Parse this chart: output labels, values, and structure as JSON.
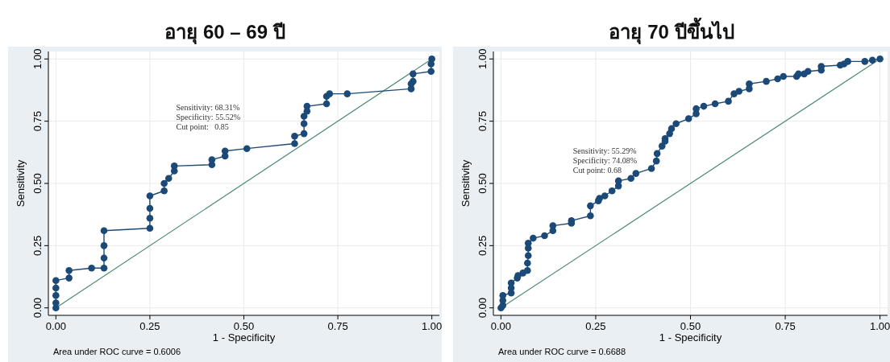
{
  "chart_data": [
    {
      "type": "line",
      "title": "อายุ 60 – 69 ปี",
      "xlabel": "1 - Specificity",
      "ylabel": "Sensitivity",
      "xlim": [
        -0.02,
        1.02
      ],
      "ylim": [
        -0.03,
        1.03
      ],
      "xticks": [
        {
          "value": 0,
          "label": "0.00"
        },
        {
          "value": 0.25,
          "label": "0.25"
        },
        {
          "value": 0.5,
          "label": "0.50"
        },
        {
          "value": 0.75,
          "label": "0.75"
        },
        {
          "value": 1,
          "label": "1.00"
        }
      ],
      "yticks": [
        {
          "value": 0,
          "label": "0.00"
        },
        {
          "value": 0.25,
          "label": "0.25"
        },
        {
          "value": 0.5,
          "label": "0.50"
        },
        {
          "value": 0.75,
          "label": "0.75"
        },
        {
          "value": 1,
          "label": "1.00"
        }
      ],
      "grid": true,
      "series": [
        {
          "type": "line",
          "marker": "circle",
          "color": "#1b4a78",
          "x": [
            0,
            0,
            0,
            0,
            0,
            0.035,
            0.035,
            0.095,
            0.128,
            0.128,
            0.128,
            0.128,
            0.25,
            0.25,
            0.25,
            0.25,
            0.288,
            0.288,
            0.3,
            0.315,
            0.315,
            0.415,
            0.415,
            0.45,
            0.45,
            0.508,
            0.635,
            0.635,
            0.66,
            0.66,
            0.66,
            0.668,
            0.668,
            0.72,
            0.72,
            0.728,
            0.775,
            0.945,
            0.945,
            0.95,
            0.95,
            0.998,
            0.998,
            1
          ],
          "values": [
            0,
            0.02,
            0.05,
            0.08,
            0.11,
            0.12,
            0.15,
            0.16,
            0.16,
            0.2,
            0.25,
            0.31,
            0.32,
            0.36,
            0.4,
            0.45,
            0.47,
            0.5,
            0.52,
            0.55,
            0.57,
            0.575,
            0.595,
            0.61,
            0.63,
            0.64,
            0.66,
            0.69,
            0.7,
            0.74,
            0.77,
            0.79,
            0.81,
            0.82,
            0.85,
            0.86,
            0.86,
            0.88,
            0.9,
            0.91,
            0.94,
            0.95,
            0.98,
            1
          ]
        },
        {
          "type": "line",
          "marker": "none",
          "color": "#4a8a6e",
          "x": [
            0,
            1
          ],
          "values": [
            0,
            1
          ]
        }
      ],
      "annotations": [
        "Sensitivity: 68.31%",
        "Specificity: 55.52%",
        "Cut point:   0.85",
        "Area under ROC curve = 0.6006"
      ]
    },
    {
      "type": "line",
      "title": "อายุ 70 ปีขึ้นไป",
      "xlabel": "1 - Specificity",
      "ylabel": "Sensitivity",
      "xlim": [
        -0.02,
        1.02
      ],
      "ylim": [
        -0.03,
        1.03
      ],
      "xticks": [
        {
          "value": 0,
          "label": "0.00"
        },
        {
          "value": 0.25,
          "label": "0.25"
        },
        {
          "value": 0.5,
          "label": "0.50"
        },
        {
          "value": 0.75,
          "label": "0.75"
        },
        {
          "value": 1,
          "label": "1.00"
        }
      ],
      "yticks": [
        {
          "value": 0,
          "label": "0.00"
        },
        {
          "value": 0.25,
          "label": "0.25"
        },
        {
          "value": 0.5,
          "label": "0.50"
        },
        {
          "value": 0.75,
          "label": "0.75"
        },
        {
          "value": 1,
          "label": "1.00"
        }
      ],
      "grid": true,
      "series": [
        {
          "type": "line",
          "marker": "circle",
          "color": "#1b4a78",
          "x": [
            0,
            0.005,
            0.005,
            0.005,
            0.027,
            0.027,
            0.027,
            0.043,
            0.045,
            0.058,
            0.07,
            0.07,
            0.072,
            0.072,
            0.072,
            0.085,
            0.115,
            0.137,
            0.137,
            0.186,
            0.186,
            0.236,
            0.236,
            0.257,
            0.26,
            0.274,
            0.293,
            0.31,
            0.31,
            0.343,
            0.356,
            0.397,
            0.41,
            0.412,
            0.425,
            0.433,
            0.433,
            0.445,
            0.45,
            0.462,
            0.495,
            0.515,
            0.515,
            0.535,
            0.565,
            0.6,
            0.615,
            0.628,
            0.655,
            0.655,
            0.7,
            0.73,
            0.745,
            0.78,
            0.785,
            0.8,
            0.81,
            0.845,
            0.845,
            0.895,
            0.905,
            0.915,
            0.96,
            0.98,
            1
          ],
          "values": [
            0,
            0.01,
            0.03,
            0.05,
            0.06,
            0.08,
            0.1,
            0.12,
            0.13,
            0.14,
            0.15,
            0.18,
            0.21,
            0.24,
            0.26,
            0.28,
            0.29,
            0.31,
            0.33,
            0.34,
            0.35,
            0.37,
            0.41,
            0.43,
            0.44,
            0.45,
            0.47,
            0.49,
            0.51,
            0.52,
            0.54,
            0.56,
            0.59,
            0.62,
            0.65,
            0.67,
            0.68,
            0.7,
            0.72,
            0.74,
            0.76,
            0.78,
            0.8,
            0.81,
            0.82,
            0.83,
            0.86,
            0.87,
            0.88,
            0.9,
            0.91,
            0.92,
            0.93,
            0.93,
            0.94,
            0.94,
            0.95,
            0.955,
            0.97,
            0.975,
            0.98,
            0.99,
            0.99,
            0.995,
            1
          ]
        },
        {
          "type": "line",
          "marker": "none",
          "color": "#4a8a6e",
          "x": [
            0,
            1
          ],
          "values": [
            0,
            1
          ]
        }
      ],
      "annotations": [
        "Sensitivity: 55.29%",
        "Specificity: 74.08%",
        "Cut point: 0.68",
        "Area under ROC curve = 0.6688"
      ]
    }
  ]
}
